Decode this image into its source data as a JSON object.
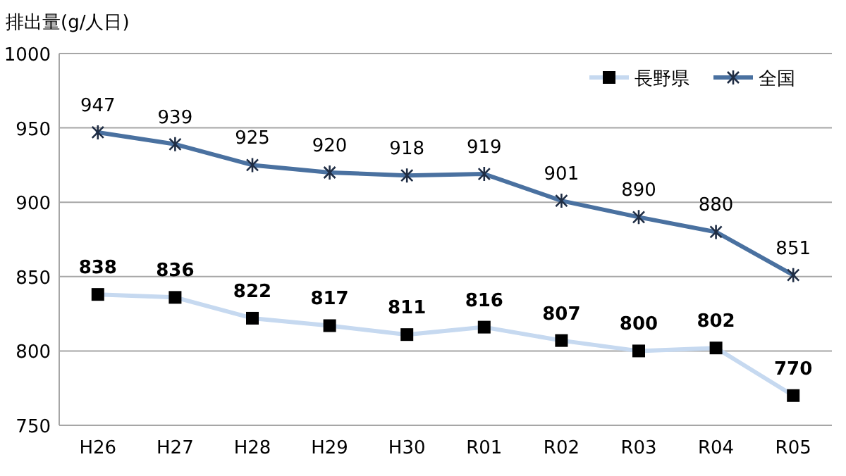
{
  "chart_data": {
    "type": "line",
    "ylabel": "排出量(g/人日)",
    "categories": [
      "H26",
      "H27",
      "H28",
      "H29",
      "H30",
      "R01",
      "R02",
      "R03",
      "R04",
      "R05"
    ],
    "series": [
      {
        "name": "長野県",
        "color": "#c6d9f0",
        "marker": "square",
        "values": [
          838,
          836,
          822,
          817,
          811,
          816,
          807,
          800,
          802,
          770
        ]
      },
      {
        "name": "全国",
        "color": "#4a71a0",
        "marker": "cross",
        "values": [
          947,
          939,
          925,
          920,
          918,
          919,
          901,
          890,
          880,
          851
        ]
      }
    ],
    "ylim": [
      750,
      1000
    ],
    "yticks": [
      750,
      800,
      850,
      900,
      950,
      1000
    ],
    "grid": "y",
    "legend": "top right",
    "data_labels": true
  }
}
